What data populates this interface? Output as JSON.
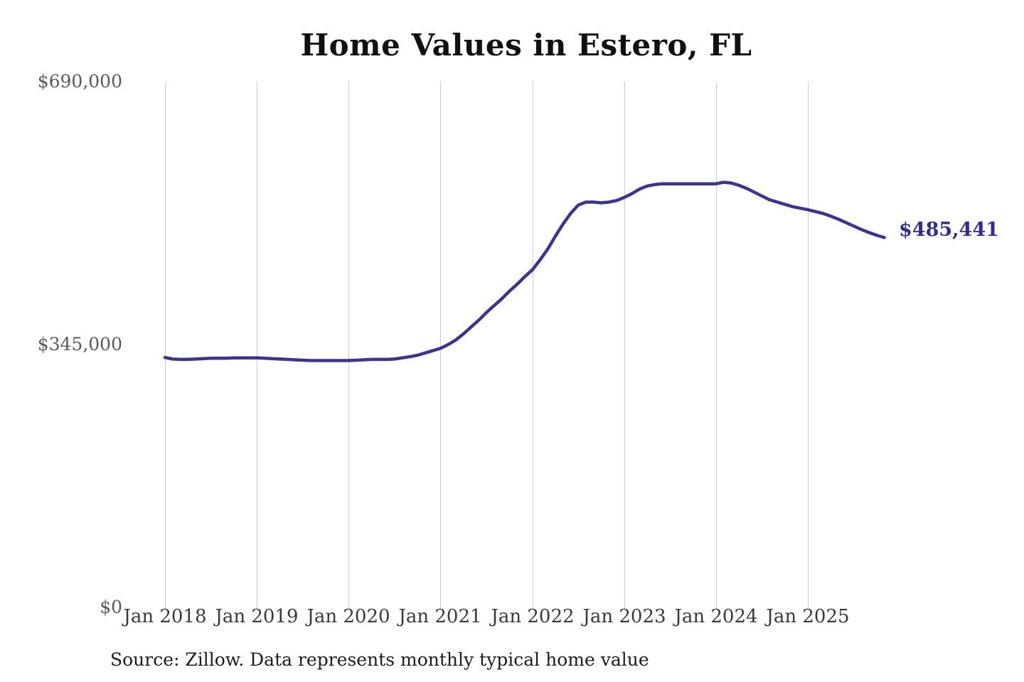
{
  "chart_data": {
    "type": "line",
    "title": "Home Values in Estero, FL",
    "series_name": "Monthly typical home value",
    "x": [
      "2018-01",
      "2018-02",
      "2018-03",
      "2018-04",
      "2018-05",
      "2018-06",
      "2018-07",
      "2018-08",
      "2018-09",
      "2018-10",
      "2018-11",
      "2018-12",
      "2019-01",
      "2019-02",
      "2019-03",
      "2019-04",
      "2019-05",
      "2019-06",
      "2019-07",
      "2019-08",
      "2019-09",
      "2019-10",
      "2019-11",
      "2019-12",
      "2020-01",
      "2020-02",
      "2020-03",
      "2020-04",
      "2020-05",
      "2020-06",
      "2020-07",
      "2020-08",
      "2020-09",
      "2020-10",
      "2020-11",
      "2020-12",
      "2021-01",
      "2021-02",
      "2021-03",
      "2021-04",
      "2021-05",
      "2021-06",
      "2021-07",
      "2021-08",
      "2021-09",
      "2021-10",
      "2021-11",
      "2021-12",
      "2022-01",
      "2022-02",
      "2022-03",
      "2022-04",
      "2022-05",
      "2022-06",
      "2022-07",
      "2022-08",
      "2022-09",
      "2022-10",
      "2022-11",
      "2022-12",
      "2023-01",
      "2023-02",
      "2023-03",
      "2023-04",
      "2023-05",
      "2023-06",
      "2023-07",
      "2023-08",
      "2023-09",
      "2023-10",
      "2023-11",
      "2023-12",
      "2024-01",
      "2024-02",
      "2024-03",
      "2024-04",
      "2024-05",
      "2024-06",
      "2024-07",
      "2024-08",
      "2024-09",
      "2024-10",
      "2024-11",
      "2024-12",
      "2025-01",
      "2025-02",
      "2025-03",
      "2025-04",
      "2025-05",
      "2025-06",
      "2025-07",
      "2025-08",
      "2025-09",
      "2025-10",
      "2025-11"
    ],
    "values": [
      328000,
      326000,
      325500,
      325500,
      326000,
      326500,
      327000,
      327000,
      327000,
      327500,
      327500,
      327500,
      327500,
      327000,
      326500,
      326000,
      325500,
      325000,
      324500,
      324000,
      324000,
      324000,
      324000,
      324000,
      324000,
      324500,
      325000,
      325500,
      325500,
      325500,
      326000,
      327500,
      329000,
      331000,
      334000,
      337000,
      340000,
      345000,
      351000,
      359000,
      368000,
      377000,
      387000,
      396000,
      405000,
      415000,
      424000,
      434000,
      443000,
      456000,
      470000,
      487000,
      503000,
      517000,
      528000,
      532000,
      532000,
      531000,
      532000,
      534000,
      538000,
      543000,
      549000,
      553000,
      555000,
      556000,
      556000,
      556000,
      556000,
      556000,
      556000,
      556000,
      556000,
      558000,
      557000,
      554000,
      550000,
      545000,
      540000,
      535000,
      532000,
      529000,
      526000,
      524000,
      522000,
      519500,
      517000,
      513500,
      509500,
      505000,
      500500,
      496000,
      492000,
      488500,
      485441
    ],
    "x_ticks": [
      "Jan 2018",
      "Jan 2019",
      "Jan 2020",
      "Jan 2021",
      "Jan 2022",
      "Jan 2023",
      "Jan 2024",
      "Jan 2025"
    ],
    "y_ticks": [
      "$690,000",
      "$345,000",
      "$0"
    ],
    "ylim": [
      0,
      690000
    ],
    "grid": "vertical-only",
    "legend": "none",
    "end_label": "$485,441",
    "final_value": 485441,
    "line_color": "#3b3494",
    "end_label_color": "#2e2b9b",
    "gridline_color": "#cbcbcb",
    "source": "Source: Zillow. Data represents monthly typical home value"
  }
}
